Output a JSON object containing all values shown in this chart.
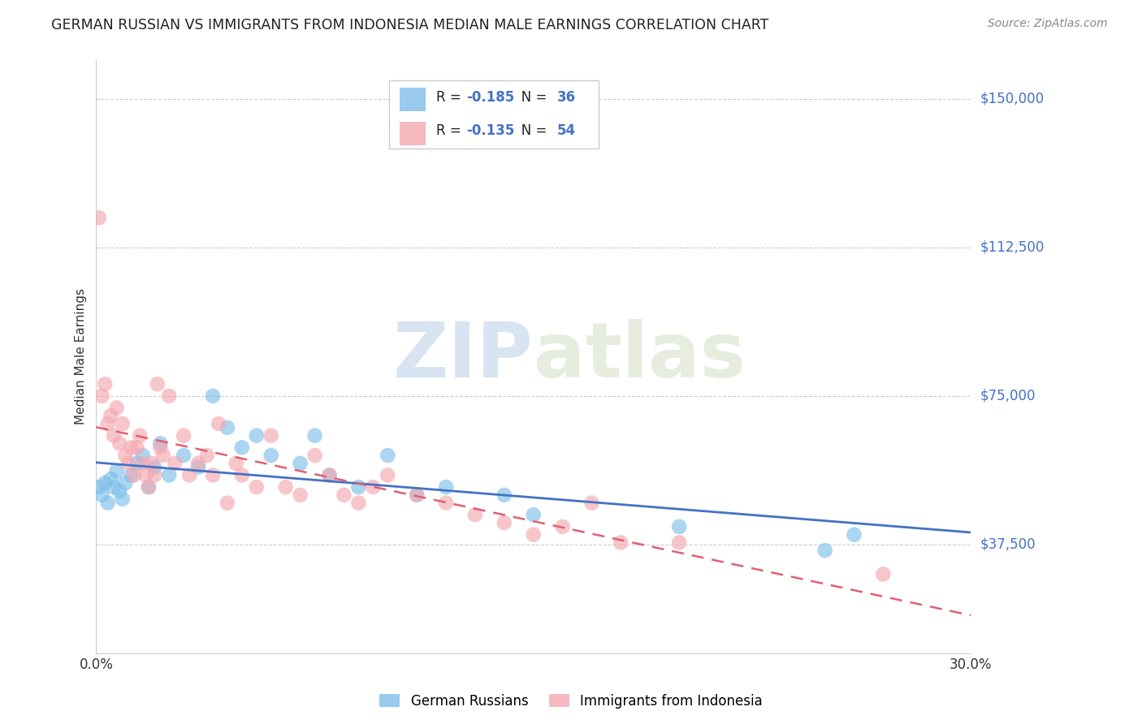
{
  "title": "GERMAN RUSSIAN VS IMMIGRANTS FROM INDONESIA MEDIAN MALE EARNINGS CORRELATION CHART",
  "source": "Source: ZipAtlas.com",
  "ylabel": "Median Male Earnings",
  "x_min": 0.0,
  "x_max": 0.3,
  "y_min": 10000,
  "y_max": 160000,
  "y_ticks": [
    37500,
    75000,
    112500,
    150000
  ],
  "y_tick_labels": [
    "$37,500",
    "$75,000",
    "$112,500",
    "$150,000"
  ],
  "x_ticks": [
    0.0,
    0.05,
    0.1,
    0.15,
    0.2,
    0.25,
    0.3
  ],
  "x_tick_labels": [
    "0.0%",
    "",
    "",
    "",
    "",
    "",
    "30.0%"
  ],
  "blue_color": "#7fbfea",
  "pink_color": "#f4a8b0",
  "blue_line_color": "#4472c4",
  "pink_line_color": "#e06070",
  "R_blue": -0.185,
  "N_blue": 36,
  "R_pink": -0.135,
  "N_pink": 54,
  "watermark_zip": "ZIP",
  "watermark_atlas": "atlas",
  "blue_scatter_x": [
    0.001,
    0.002,
    0.003,
    0.004,
    0.005,
    0.006,
    0.007,
    0.008,
    0.009,
    0.01,
    0.012,
    0.014,
    0.016,
    0.018,
    0.02,
    0.022,
    0.025,
    0.03,
    0.035,
    0.04,
    0.045,
    0.05,
    0.055,
    0.06,
    0.07,
    0.075,
    0.08,
    0.09,
    0.1,
    0.11,
    0.12,
    0.14,
    0.15,
    0.2,
    0.25,
    0.26
  ],
  "blue_scatter_y": [
    52000,
    50000,
    53000,
    48000,
    54000,
    52000,
    56000,
    51000,
    49000,
    53000,
    55000,
    58000,
    60000,
    52000,
    57000,
    63000,
    55000,
    60000,
    57000,
    75000,
    67000,
    62000,
    65000,
    60000,
    58000,
    65000,
    55000,
    52000,
    60000,
    50000,
    52000,
    50000,
    45000,
    42000,
    36000,
    40000
  ],
  "pink_scatter_x": [
    0.001,
    0.002,
    0.003,
    0.004,
    0.005,
    0.006,
    0.007,
    0.008,
    0.009,
    0.01,
    0.011,
    0.012,
    0.013,
    0.014,
    0.015,
    0.016,
    0.017,
    0.018,
    0.019,
    0.02,
    0.021,
    0.022,
    0.023,
    0.025,
    0.027,
    0.03,
    0.032,
    0.035,
    0.038,
    0.04,
    0.042,
    0.045,
    0.048,
    0.05,
    0.055,
    0.06,
    0.065,
    0.07,
    0.075,
    0.08,
    0.085,
    0.09,
    0.095,
    0.1,
    0.11,
    0.12,
    0.13,
    0.14,
    0.15,
    0.16,
    0.17,
    0.18,
    0.2,
    0.27
  ],
  "pink_scatter_y": [
    120000,
    75000,
    78000,
    68000,
    70000,
    65000,
    72000,
    63000,
    68000,
    60000,
    58000,
    62000,
    55000,
    62000,
    65000,
    58000,
    55000,
    52000,
    58000,
    55000,
    78000,
    62000,
    60000,
    75000,
    58000,
    65000,
    55000,
    58000,
    60000,
    55000,
    68000,
    48000,
    58000,
    55000,
    52000,
    65000,
    52000,
    50000,
    60000,
    55000,
    50000,
    48000,
    52000,
    55000,
    50000,
    48000,
    45000,
    43000,
    40000,
    42000,
    48000,
    38000,
    38000,
    30000
  ]
}
